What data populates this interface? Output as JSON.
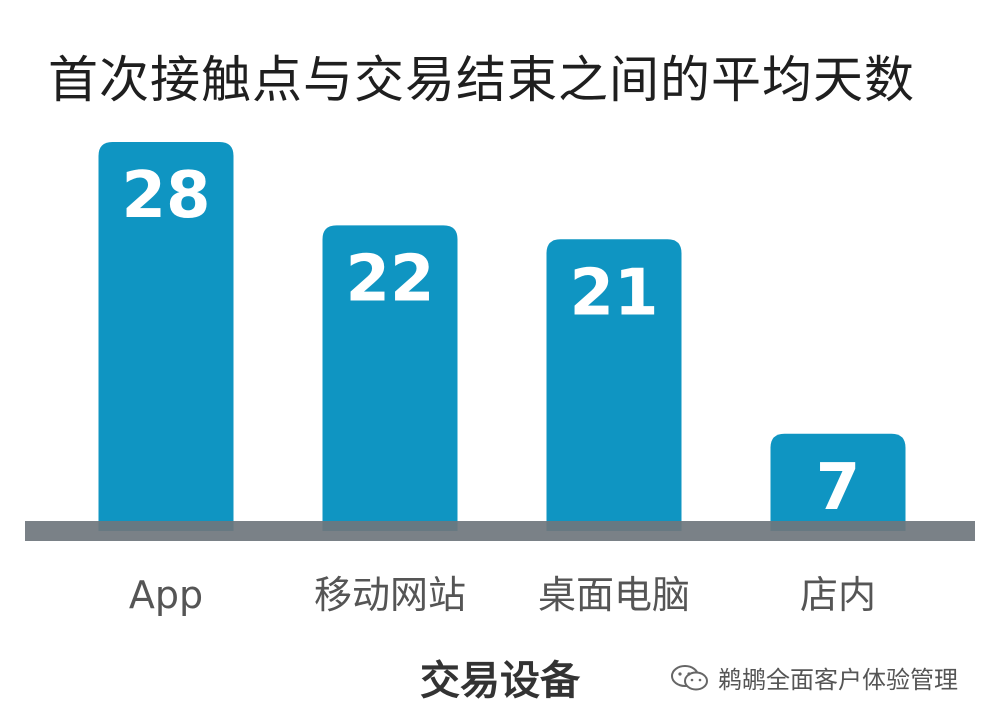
{
  "title": "首次接触点与交易结束之间的平均天数",
  "watermark": {
    "text": "鹈鹕全面客户体验管理"
  },
  "colors": {
    "bar": "#0f95c2",
    "baseline": "#6f767d",
    "value_label": "#ffffff",
    "tick_label": "#555555"
  },
  "chart_data": {
    "type": "bar",
    "title": "首次接触点与交易结束之间的平均天数",
    "xlabel": "交易设备",
    "ylabel": "",
    "categories": [
      "App",
      "移动网站",
      "桌面电脑",
      "店内"
    ],
    "values": [
      28,
      22,
      21,
      7
    ],
    "ylim": [
      0,
      30
    ],
    "grid": false,
    "legend": "none",
    "data_labels": true
  }
}
